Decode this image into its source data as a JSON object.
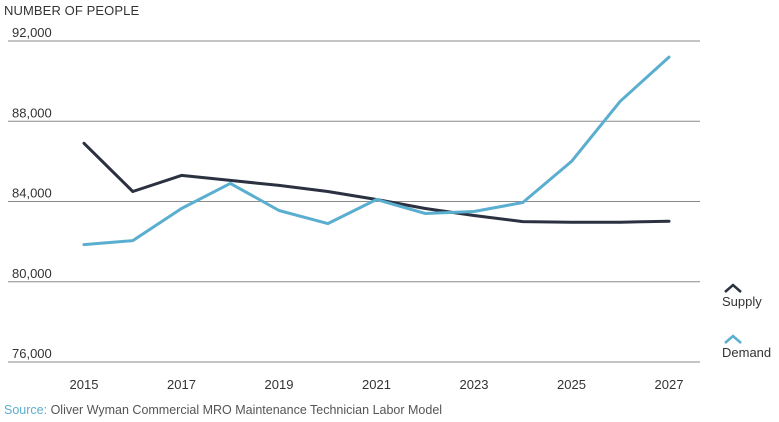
{
  "chart_data": {
    "type": "line",
    "ylabel": "NUMBER OF PEOPLE",
    "x": [
      2015,
      2016,
      2017,
      2018,
      2019,
      2020,
      2021,
      2022,
      2023,
      2024,
      2025,
      2026,
      2027
    ],
    "x_ticks": [
      "2015",
      "2017",
      "2019",
      "2021",
      "2023",
      "2025",
      "2027"
    ],
    "y_ticks": [
      "92,000",
      "88,000",
      "84,000",
      "80,000",
      "76,000"
    ],
    "ylim": [
      76000,
      92000
    ],
    "grid": "horizontal",
    "legend_position": "right",
    "series": [
      {
        "name": "Supply",
        "color": "#2b3140",
        "values": [
          86900,
          84500,
          85300,
          85050,
          84800,
          84500,
          84100,
          83650,
          83300,
          83000,
          82970,
          82970,
          83020
        ]
      },
      {
        "name": "Demand",
        "color": "#5aaecf",
        "values": [
          81850,
          82050,
          83650,
          84900,
          83550,
          82900,
          84100,
          83400,
          83500,
          83950,
          86000,
          89000,
          91200
        ]
      }
    ]
  },
  "source": {
    "label": "Source:",
    "text": "Oliver Wyman Commercial MRO Maintenance Technician Labor Model"
  }
}
